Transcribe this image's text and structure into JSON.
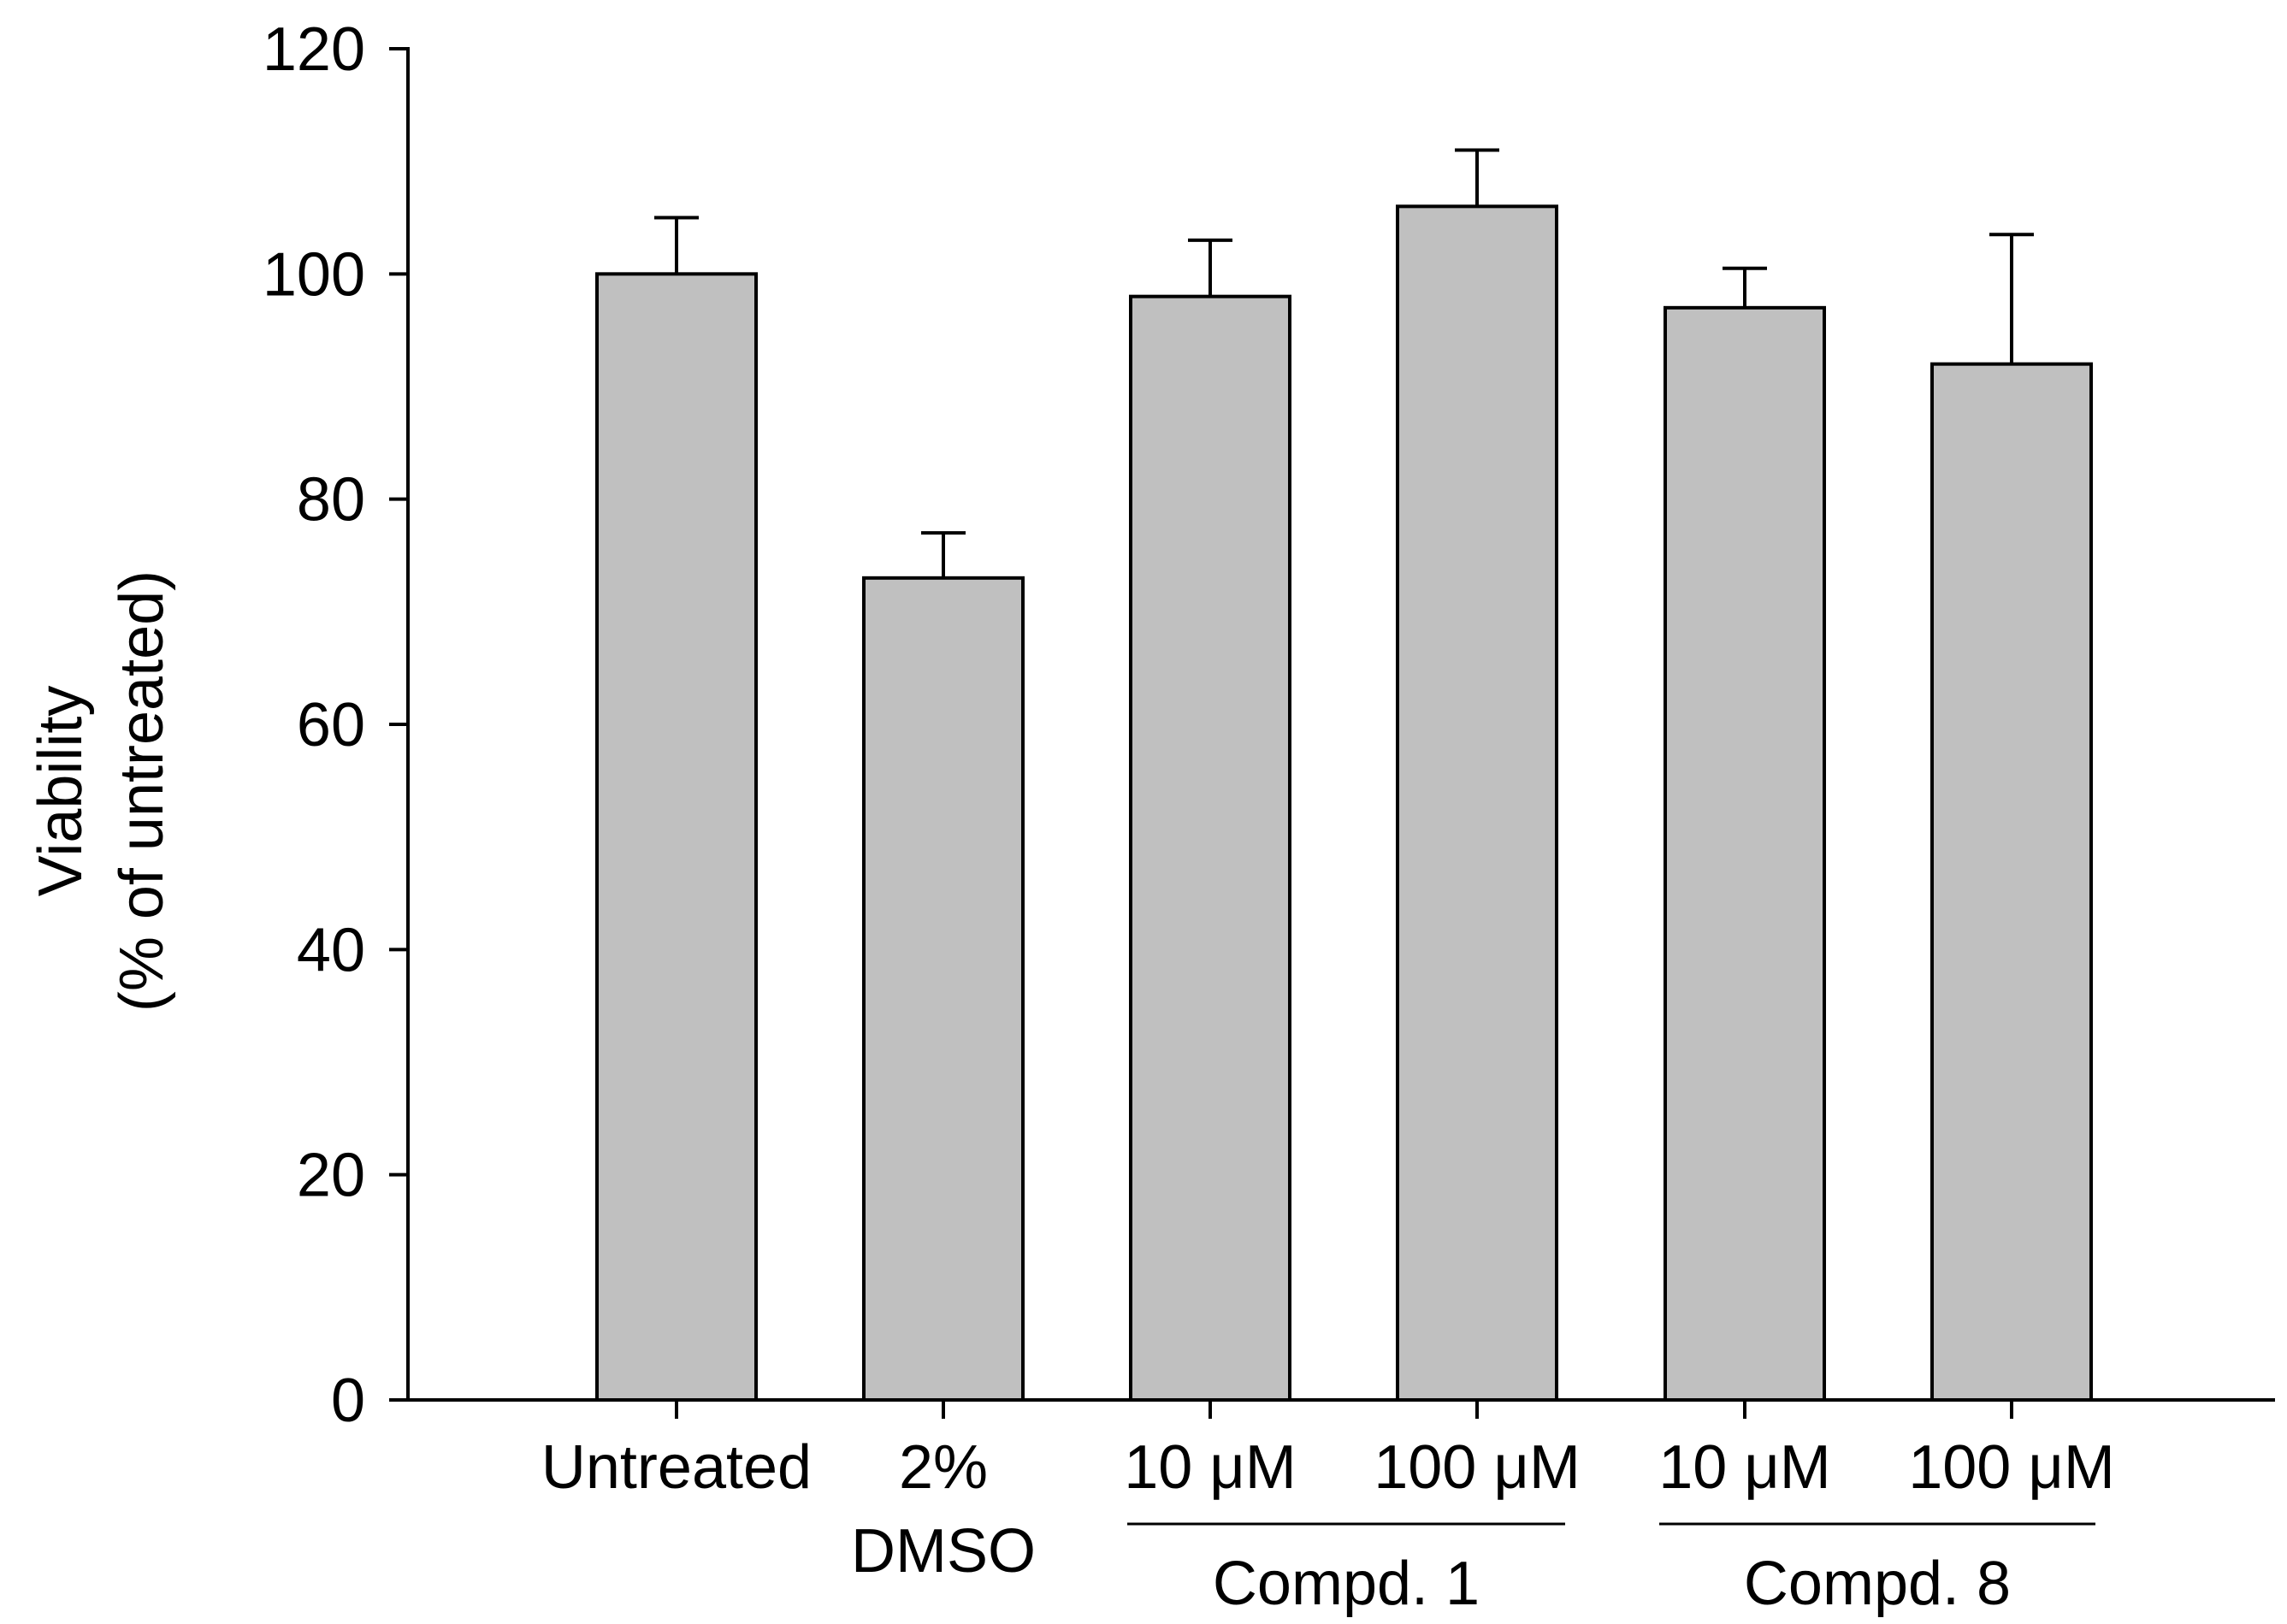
{
  "chart_data": {
    "type": "bar",
    "title": "",
    "xlabel": "",
    "ylabel_lines": [
      "Viability",
      "(% of untreated)"
    ],
    "ylim": [
      0,
      120
    ],
    "yticks": [
      0,
      20,
      40,
      60,
      80,
      100,
      120
    ],
    "grid": false,
    "bar_color": "#c0c0c0",
    "edge_color": "#000000",
    "bars": [
      {
        "label_lines": [
          "Untreated"
        ],
        "value": 100,
        "error": 5
      },
      {
        "label_lines": [
          "2%",
          "DMSO"
        ],
        "value": 73,
        "error": 4
      },
      {
        "label_lines": [
          "10 μM"
        ],
        "value": 98,
        "error": 5
      },
      {
        "label_lines": [
          "100 μM"
        ],
        "value": 106,
        "error": 5
      },
      {
        "label_lines": [
          "10 μM"
        ],
        "value": 97,
        "error": 3.5
      },
      {
        "label_lines": [
          "100 μM"
        ],
        "value": 92,
        "error": 11.5
      }
    ],
    "groups": [
      {
        "label": "Compd. 1",
        "bar_indices": [
          2,
          3
        ]
      },
      {
        "label": "Compd. 8",
        "bar_indices": [
          4,
          5
        ]
      }
    ]
  }
}
